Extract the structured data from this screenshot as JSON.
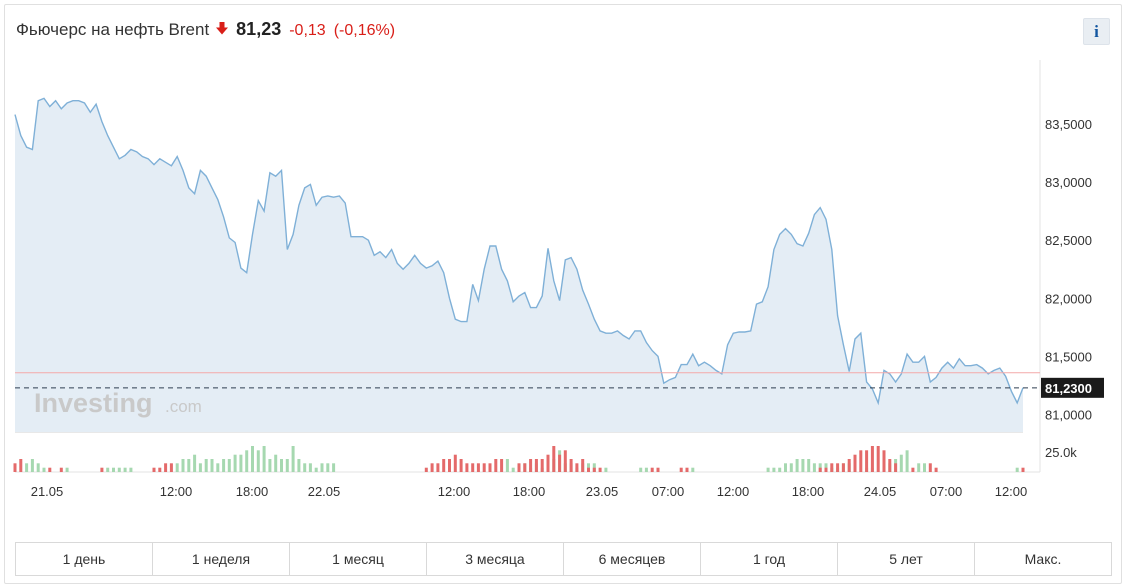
{
  "header": {
    "title": "Фьючерс на нефть Brent",
    "price": "81,23",
    "change": "-0,13",
    "change_pct": "(-0,16%)",
    "direction_icon": "arrow-down-icon",
    "info_label": "i"
  },
  "colors": {
    "line": "#7fb0d7",
    "area": "#e4edf5",
    "up_volume": "#a6d8b0",
    "down_volume": "#e46a6a",
    "change": "#d91e18",
    "prev_close_line": "#f4a9a9",
    "current_price_badge": "#1a1a1a"
  },
  "watermark": {
    "brand": "Investing",
    "suffix": ".com"
  },
  "current_price_label": "81,2300",
  "timeframes": [
    "1 день",
    "1 неделя",
    "1 месяц",
    "3 месяца",
    "6 месяцев",
    "1 год",
    "5 лет",
    "Макс."
  ],
  "chart_data": {
    "type": "area",
    "y_axis": {
      "ticks": [
        "83,5000",
        "83,0000",
        "82,5000",
        "82,0000",
        "81,5000",
        "81,0000"
      ],
      "min": 80.85,
      "max": 84.05
    },
    "x_axis": {
      "ticks": [
        "21.05",
        "12:00",
        "18:00",
        "22.05",
        "12:00",
        "18:00",
        "23.05",
        "07:00",
        "12:00",
        "18:00",
        "24.05",
        "07:00",
        "12:00"
      ]
    },
    "volume_axis": {
      "ticks": [
        "25.0k"
      ]
    },
    "prev_close": 81.36,
    "current": 81.23,
    "price": [
      83.58,
      83.4,
      83.3,
      83.28,
      83.7,
      83.72,
      83.65,
      83.7,
      83.63,
      83.68,
      83.7,
      83.7,
      83.68,
      83.6,
      83.67,
      83.52,
      83.4,
      83.3,
      83.2,
      83.23,
      83.28,
      83.26,
      83.22,
      83.2,
      83.15,
      83.2,
      83.17,
      83.14,
      83.22,
      83.1,
      82.95,
      82.9,
      83.1,
      83.05,
      82.95,
      82.85,
      82.7,
      82.52,
      82.48,
      82.26,
      82.22,
      82.55,
      82.84,
      82.75,
      83.08,
      83.05,
      83.1,
      82.42,
      82.55,
      82.8,
      82.95,
      82.98,
      82.8,
      82.87,
      82.88,
      82.87,
      82.88,
      82.82,
      82.53,
      82.53,
      82.53,
      82.5,
      82.37,
      82.4,
      82.35,
      82.42,
      82.3,
      82.25,
      82.3,
      82.37,
      82.3,
      82.26,
      82.28,
      82.32,
      82.22,
      82.0,
      81.82,
      81.8,
      81.8,
      82.12,
      81.98,
      82.25,
      82.45,
      82.45,
      82.25,
      82.15,
      81.97,
      82.02,
      82.05,
      81.92,
      81.92,
      82.02,
      82.43,
      82.15,
      81.98,
      82.33,
      82.35,
      82.25,
      82.07,
      81.95,
      81.82,
      81.72,
      81.7,
      81.7,
      81.72,
      81.68,
      81.65,
      81.72,
      81.72,
      81.62,
      81.55,
      81.5,
      81.27,
      81.3,
      81.32,
      81.43,
      81.43,
      81.52,
      81.42,
      81.45,
      81.42,
      81.38,
      81.35,
      81.6,
      81.7,
      81.71,
      81.71,
      81.72,
      81.95,
      81.97,
      82.1,
      82.42,
      82.55,
      82.6,
      82.55,
      82.47,
      82.45,
      82.56,
      82.72,
      82.78,
      82.68,
      82.42,
      81.85,
      81.6,
      81.37,
      81.65,
      81.7,
      81.28,
      81.22,
      81.1,
      81.38,
      81.35,
      81.28,
      81.35,
      81.52,
      81.45,
      81.45,
      81.5,
      81.28,
      81.32,
      81.4,
      81.45,
      81.4,
      81.48,
      81.42,
      81.42,
      81.43,
      81.4,
      81.35,
      81.38,
      81.4,
      81.33,
      81.2,
      81.1,
      81.23
    ],
    "volume_series": [
      {
        "name": "up",
        "values": [
          0,
          0,
          2,
          3,
          2,
          1,
          0,
          0,
          0,
          1,
          0,
          0,
          0,
          0,
          0,
          0,
          1,
          1,
          1,
          1,
          1,
          0,
          0,
          0,
          0,
          0,
          0,
          0,
          2,
          3,
          3,
          4,
          2,
          3,
          3,
          2,
          3,
          3,
          4,
          4,
          5,
          6,
          5,
          6,
          3,
          4,
          3,
          3,
          6,
          3,
          2,
          2,
          1,
          2,
          2,
          2,
          0,
          0,
          0,
          0,
          0,
          0,
          0,
          0,
          0,
          0,
          0,
          0,
          0,
          0,
          0,
          0,
          0,
          0,
          0,
          0,
          0,
          0,
          0,
          0,
          0,
          0,
          0,
          0,
          0,
          3,
          1,
          1,
          2,
          1,
          2,
          1,
          2,
          3,
          5,
          2,
          2,
          1,
          2,
          2,
          2,
          0,
          1,
          0,
          0,
          0,
          0,
          0,
          1,
          1,
          0,
          0,
          0,
          0,
          0,
          0,
          0,
          1,
          0,
          0,
          0,
          0,
          0,
          0,
          0,
          0,
          0,
          0,
          0,
          0,
          1,
          1,
          1,
          2,
          2,
          3,
          3,
          3,
          2,
          2,
          2,
          1,
          1,
          2,
          2,
          0,
          0,
          1,
          1,
          0,
          0,
          2,
          3,
          4,
          5,
          0,
          2,
          2,
          0,
          0,
          0,
          0,
          0,
          0,
          0,
          0,
          0,
          0,
          0,
          0,
          0,
          0,
          0,
          1,
          0
        ]
      },
      {
        "name": "down",
        "values": [
          2,
          3,
          0,
          0,
          0,
          0,
          1,
          0,
          1,
          0,
          0,
          0,
          0,
          0,
          0,
          1,
          0,
          0,
          0,
          0,
          0,
          0,
          0,
          0,
          1,
          1,
          2,
          2,
          0,
          0,
          0,
          0,
          0,
          0,
          0,
          0,
          0,
          0,
          0,
          0,
          0,
          0,
          0,
          0,
          0,
          0,
          0,
          0,
          0,
          0,
          0,
          0,
          0,
          0,
          0,
          0,
          0,
          0,
          0,
          0,
          0,
          0,
          0,
          0,
          0,
          0,
          0,
          0,
          0,
          0,
          0,
          1,
          2,
          2,
          3,
          3,
          4,
          3,
          2,
          2,
          2,
          2,
          2,
          3,
          3,
          0,
          0,
          2,
          2,
          3,
          3,
          3,
          4,
          6,
          4,
          5,
          3,
          2,
          3,
          1,
          1,
          1,
          0,
          0,
          0,
          0,
          0,
          0,
          0,
          0,
          1,
          1,
          0,
          0,
          0,
          1,
          1,
          0,
          0,
          0,
          0,
          0,
          0,
          0,
          0,
          0,
          0,
          0,
          0,
          0,
          0,
          0,
          0,
          0,
          0,
          0,
          0,
          0,
          0,
          1,
          1,
          2,
          2,
          2,
          3,
          4,
          5,
          5,
          6,
          6,
          5,
          3,
          2,
          0,
          0,
          1,
          0,
          0,
          2,
          1,
          0,
          0,
          0,
          0,
          0,
          0,
          0,
          0,
          0,
          0,
          0,
          0,
          0,
          0,
          1
        ]
      }
    ]
  }
}
